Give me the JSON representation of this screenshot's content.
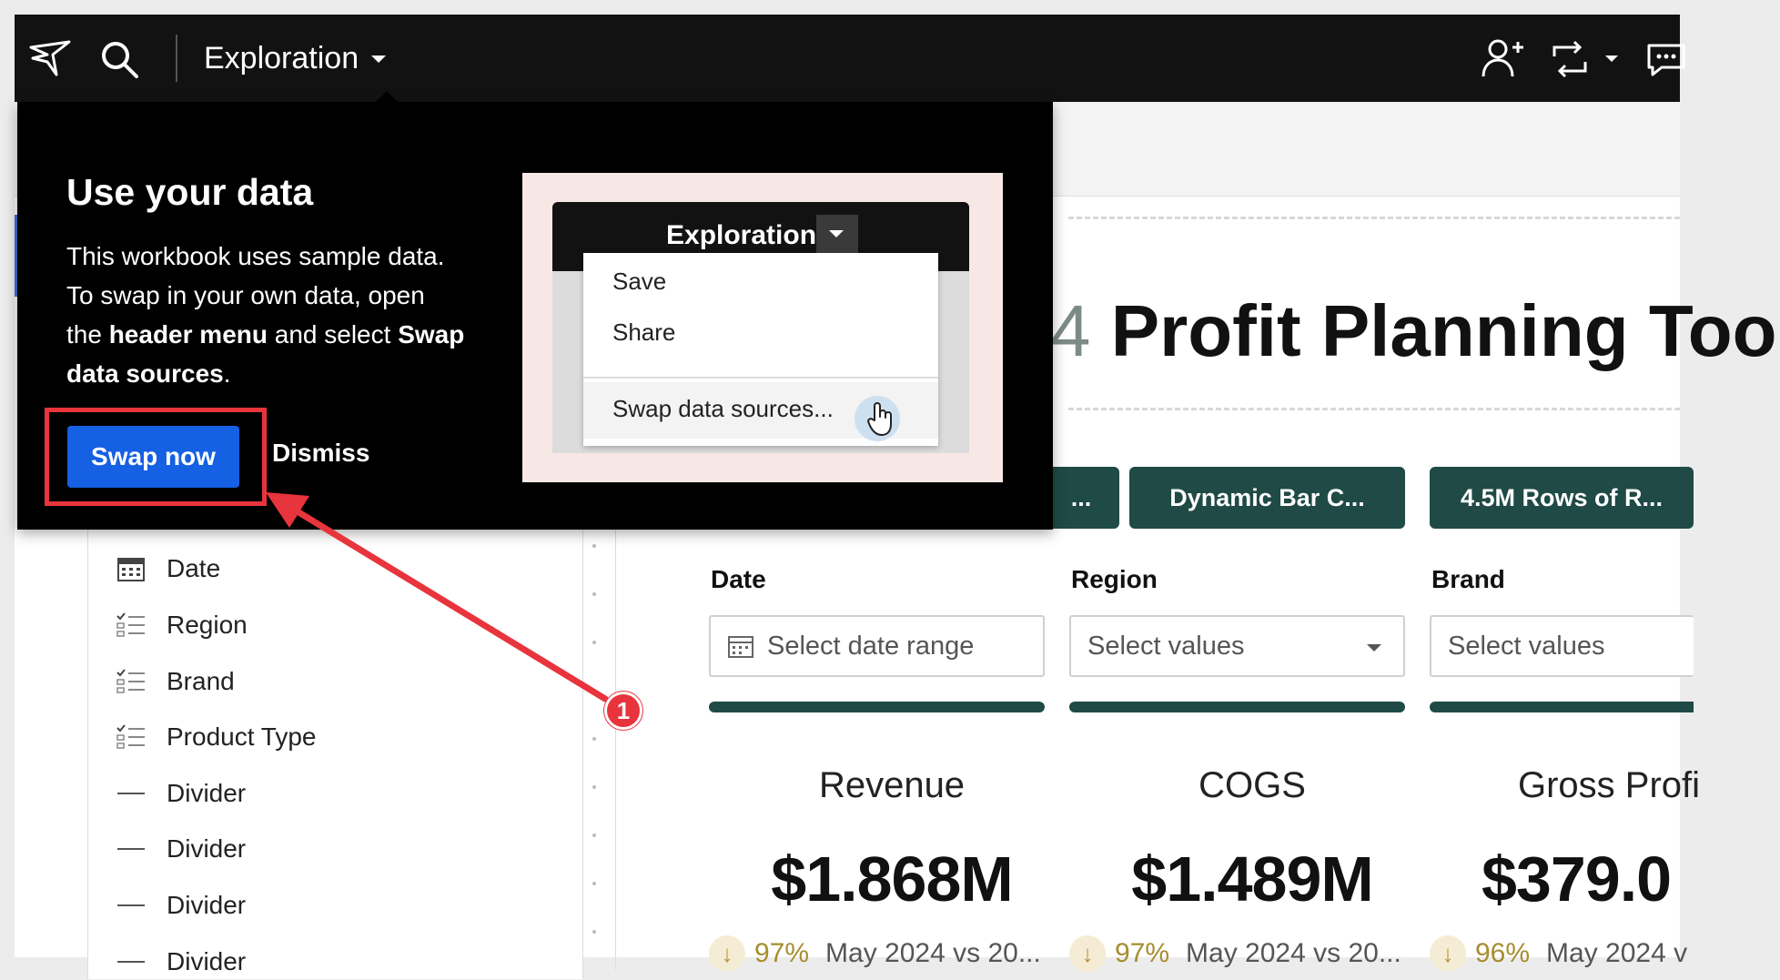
{
  "topbar": {
    "workbook_title": "Exploration"
  },
  "popover": {
    "heading": "Use your data",
    "body_plain_1": "This workbook uses sample data. To swap in your own data, open the ",
    "body_bold_1": "header menu",
    "body_plain_2": " and select ",
    "body_bold_2": "Swap data sources",
    "body_plain_3": ".",
    "primary_button": "Swap now",
    "secondary_button": "Dismiss",
    "illustration": {
      "title": "Exploration",
      "menu_items": [
        "Save",
        "Share",
        "Swap data sources..."
      ]
    }
  },
  "elements_panel": {
    "items": [
      {
        "label": "Date",
        "icon": "calendar-icon"
      },
      {
        "label": "Region",
        "icon": "list-filter-icon"
      },
      {
        "label": "Brand",
        "icon": "list-filter-icon"
      },
      {
        "label": "Product Type",
        "icon": "list-filter-icon"
      },
      {
        "label": "Divider",
        "icon": "divider-icon"
      },
      {
        "label": "Divider",
        "icon": "divider-icon"
      },
      {
        "label": "Divider",
        "icon": "divider-icon"
      },
      {
        "label": "Divider",
        "icon": "divider-icon"
      }
    ]
  },
  "canvas": {
    "page_title_lead": "4",
    "page_title": " Profit Planning Too",
    "nav_buttons": [
      "...",
      "Dynamic Bar C...",
      "4.5M Rows of R..."
    ],
    "controls": [
      {
        "label": "Date",
        "placeholder": "Select date range"
      },
      {
        "label": "Region",
        "placeholder": "Select values"
      },
      {
        "label": "Brand",
        "placeholder": "Select values"
      }
    ],
    "kpis": [
      {
        "title": "Revenue",
        "value": "$1.868M",
        "pct": "97%",
        "comparison": "May 2024 vs 20..."
      },
      {
        "title": "COGS",
        "value": "$1.489M",
        "pct": "97%",
        "comparison": "May 2024 vs 20..."
      },
      {
        "title": "Gross Profi",
        "value": "$379.0",
        "pct": "96%",
        "comparison": "May 2024 v"
      }
    ]
  },
  "annotation": {
    "step_badge": "1"
  },
  "colors": {
    "topbar_bg": "#121212",
    "primary_blue": "#1560e3",
    "nav_teal": "#1f4a45",
    "annotation_red": "#e8343c",
    "kpi_gold": "#a88d2f"
  }
}
